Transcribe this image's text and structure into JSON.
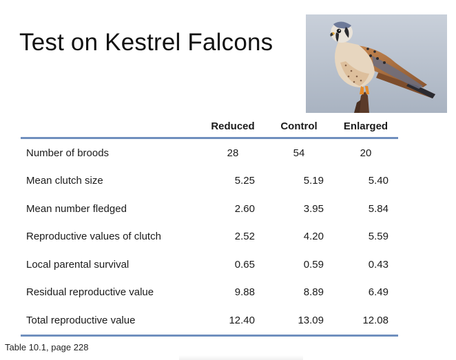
{
  "slide": {
    "title": "Test on Kestrel Falcons"
  },
  "photo": {
    "subject": "kestrel-falcon-photo"
  },
  "table": {
    "headers": [
      "",
      "Reduced",
      "Control",
      "Enlarged"
    ],
    "rows": [
      {
        "label": "Number of broods",
        "values": [
          "28",
          "54",
          "20"
        ]
      },
      {
        "label": "Mean clutch size",
        "values": [
          "5.25",
          "5.19",
          "5.40"
        ]
      },
      {
        "label": "Mean number fledged",
        "values": [
          "2.60",
          "3.95",
          "5.84"
        ]
      },
      {
        "label": "Reproductive values of clutch",
        "values": [
          "2.52",
          "4.20",
          "5.59"
        ]
      },
      {
        "label": "Local parental survival",
        "values": [
          "0.65",
          "0.59",
          "0.43"
        ]
      },
      {
        "label": "Residual reproductive value",
        "values": [
          "9.88",
          "8.89",
          "6.49"
        ]
      },
      {
        "label": "Total reproductive value",
        "values": [
          "12.40",
          "13.09",
          "12.08"
        ]
      }
    ]
  },
  "caption": "Table 10.1, page 228",
  "colors": {
    "rule": "#6f8fbe",
    "text": "#1a1a1a"
  }
}
